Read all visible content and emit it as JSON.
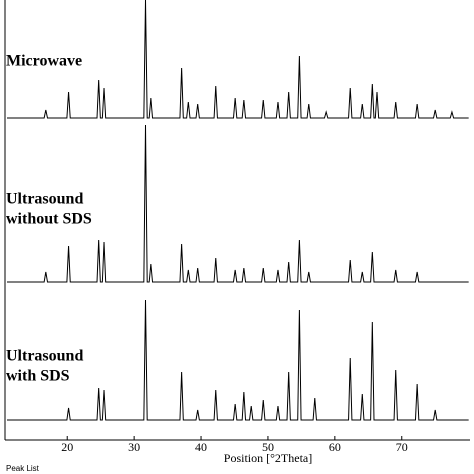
{
  "chart_data": [
    {
      "type": "line",
      "annotation": [
        "Microwave"
      ],
      "color": "#000000",
      "xlim": [
        10.7,
        80.2
      ],
      "ylim": [
        0,
        122
      ],
      "x": [
        11,
        16.55,
        16.8,
        17.05,
        19.95,
        20.2,
        20.45,
        24.45,
        24.7,
        24.95,
        25.25,
        25.5,
        25.75,
        31.45,
        31.7,
        31.95,
        32.25,
        32.5,
        32.75,
        36.85,
        37.1,
        37.35,
        37.85,
        38.1,
        38.35,
        39.25,
        39.5,
        39.75,
        41.95,
        42.2,
        42.45,
        44.85,
        45.1,
        45.35,
        46.15,
        46.4,
        46.65,
        49.05,
        49.3,
        49.55,
        51.25,
        51.5,
        51.75,
        52.85,
        53.1,
        53.35,
        54.45,
        54.7,
        54.95,
        55.85,
        56.1,
        56.35,
        58.45,
        58.7,
        58.95,
        62.05,
        62.3,
        62.55,
        63.85,
        64.1,
        64.35,
        65.35,
        65.6,
        65.85,
        66.05,
        66.3,
        66.55,
        68.85,
        69.1,
        69.35,
        72.05,
        72.3,
        72.55,
        74.75,
        75,
        75.25,
        77.25,
        77.5,
        77.75,
        80
      ],
      "values": [
        4,
        4,
        12,
        4,
        4,
        30,
        4,
        4,
        42,
        4,
        4,
        34,
        4,
        4,
        122,
        4,
        4,
        24,
        4,
        4,
        54,
        4,
        4,
        20,
        4,
        4,
        18,
        4,
        4,
        36,
        4,
        4,
        24,
        4,
        4,
        22,
        4,
        4,
        22,
        4,
        4,
        20,
        4,
        4,
        30,
        4,
        4,
        66,
        4,
        4,
        18,
        4,
        4,
        10,
        4,
        4,
        34,
        4,
        4,
        18,
        4,
        4,
        38,
        4,
        4,
        30,
        4,
        4,
        20,
        4,
        4,
        18,
        4,
        4,
        12,
        4,
        4,
        10,
        4,
        4
      ]
    },
    {
      "type": "line",
      "annotation": [
        "Ultrasound",
        "without SDS"
      ],
      "color": "#000000",
      "xlim": [
        10.7,
        80.2
      ],
      "ylim": [
        0,
        168
      ],
      "x": [
        11,
        16.55,
        16.8,
        17.05,
        19.95,
        20.2,
        20.45,
        24.45,
        24.7,
        24.95,
        25.25,
        25.5,
        25.75,
        31.45,
        31.7,
        31.95,
        32.25,
        32.5,
        32.75,
        36.85,
        37.1,
        37.35,
        37.85,
        38.1,
        38.35,
        39.25,
        39.5,
        39.75,
        41.95,
        42.2,
        42.45,
        44.85,
        45.1,
        45.35,
        46.15,
        46.4,
        46.65,
        49.05,
        49.3,
        49.55,
        51.25,
        51.5,
        51.75,
        52.85,
        53.1,
        53.35,
        54.45,
        54.7,
        54.95,
        55.85,
        56.1,
        56.35,
        62.05,
        62.3,
        62.55,
        63.85,
        64.1,
        64.35,
        65.35,
        65.6,
        65.85,
        68.85,
        69.1,
        69.35,
        72.05,
        72.3,
        72.55,
        80
      ],
      "values": [
        8,
        8,
        18,
        8,
        8,
        44,
        8,
        8,
        50,
        8,
        8,
        48,
        8,
        8,
        165,
        8,
        8,
        26,
        8,
        8,
        46,
        8,
        8,
        20,
        8,
        8,
        22,
        8,
        8,
        32,
        8,
        8,
        20,
        8,
        8,
        22,
        8,
        8,
        22,
        8,
        8,
        20,
        8,
        8,
        28,
        8,
        8,
        50,
        8,
        8,
        18,
        8,
        8,
        30,
        8,
        8,
        18,
        8,
        8,
        38,
        8,
        8,
        20,
        8,
        8,
        18,
        8,
        8
      ]
    },
    {
      "type": "line",
      "annotation": [
        "Ultrasound",
        "with SDS"
      ],
      "color": "#000000",
      "xlim": [
        10.7,
        80.2
      ],
      "ylim": [
        0,
        150
      ],
      "xticks": [
        20,
        30,
        40,
        50,
        60,
        70
      ],
      "xlabel": "Position [°2Theta]",
      "x": [
        11,
        19.95,
        20.2,
        20.45,
        24.45,
        24.7,
        24.95,
        25.25,
        25.5,
        25.75,
        31.45,
        31.7,
        31.95,
        36.85,
        37.1,
        37.35,
        39.25,
        39.5,
        39.75,
        41.95,
        42.2,
        42.45,
        44.85,
        45.1,
        45.35,
        46.15,
        46.4,
        46.65,
        47.25,
        47.5,
        47.75,
        49.05,
        49.3,
        49.55,
        51.25,
        51.5,
        51.75,
        52.85,
        53.1,
        53.35,
        54.45,
        54.7,
        54.95,
        56.75,
        57,
        57.25,
        62.05,
        62.3,
        62.55,
        63.85,
        64.1,
        64.35,
        65.35,
        65.6,
        65.85,
        68.85,
        69.1,
        69.35,
        72.05,
        72.3,
        72.55,
        74.75,
        75,
        75.25,
        80
      ],
      "values": [
        20,
        20,
        32,
        20,
        20,
        52,
        20,
        20,
        50,
        20,
        20,
        140,
        20,
        20,
        68,
        20,
        20,
        30,
        20,
        20,
        50,
        20,
        20,
        36,
        20,
        20,
        48,
        20,
        20,
        34,
        20,
        20,
        40,
        20,
        20,
        34,
        20,
        20,
        68,
        20,
        20,
        130,
        20,
        20,
        42,
        20,
        20,
        82,
        20,
        20,
        46,
        20,
        20,
        118,
        20,
        20,
        70,
        20,
        20,
        56,
        20,
        20,
        30,
        20,
        20
      ]
    }
  ],
  "footer": "Peak List"
}
